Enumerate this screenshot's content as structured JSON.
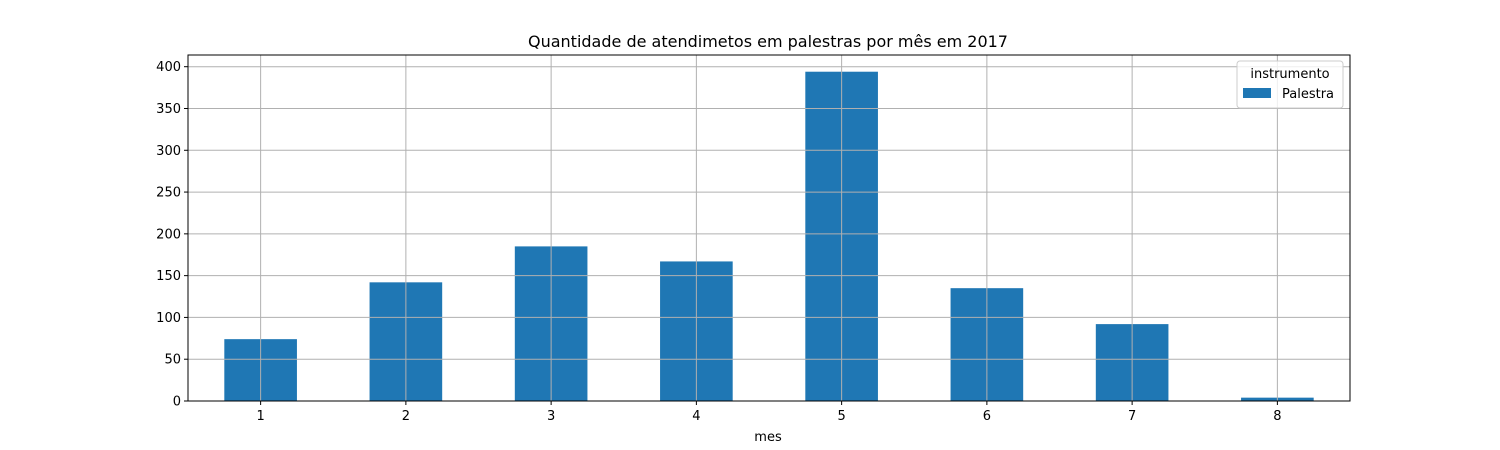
{
  "chart_data": {
    "type": "bar",
    "title": "Quantidade de atendimetos em palestras por mês em 2017",
    "xlabel": "mes",
    "ylabel": "",
    "categories": [
      "1",
      "2",
      "3",
      "4",
      "5",
      "6",
      "7",
      "8"
    ],
    "series": [
      {
        "name": "Palestra",
        "values": [
          74,
          142,
          185,
          167,
          394,
          135,
          92,
          4
        ]
      }
    ],
    "ylim": [
      0,
      414
    ],
    "yticks": [
      0,
      50,
      100,
      150,
      200,
      250,
      300,
      350,
      400
    ],
    "ytick_labels": [
      "0",
      "50",
      "100",
      "150",
      "200",
      "250",
      "300",
      "350",
      "400"
    ],
    "grid": true,
    "legend": {
      "title": "instrumento",
      "placement": "top-right"
    },
    "colors": {
      "bar": "#1f77b4",
      "grid": "#b0b0b0",
      "axis": "#000000"
    }
  }
}
